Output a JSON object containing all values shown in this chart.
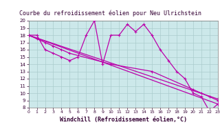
{
  "title": "Courbe du refroidissement éolien pour Neu Ulrichstein",
  "xlabel": "Windchill (Refroidissement éolien,°C)",
  "bg_color": "#cce8ea",
  "title_bg": "#ffffff",
  "grid_color": "#aacccc",
  "line_color": "#bb00aa",
  "x_min": 0,
  "x_max": 23,
  "y_min": 8,
  "y_max": 20,
  "series1_x": [
    0,
    1,
    2,
    3,
    4,
    5,
    6,
    7,
    8,
    9,
    10,
    11,
    12,
    13,
    14,
    15,
    16,
    17,
    18,
    19,
    20,
    21,
    22,
    23
  ],
  "series1_y": [
    18,
    18,
    16,
    15.5,
    15,
    14.5,
    15,
    18,
    20,
    14,
    18,
    18,
    19.5,
    18.5,
    19.5,
    18,
    16,
    14.5,
    13,
    12,
    10,
    9.5,
    7.5,
    8.5
  ],
  "series2_x": [
    0,
    1,
    2,
    3,
    4,
    5,
    10,
    15,
    20,
    21,
    22,
    23
  ],
  "series2_y": [
    18,
    17.5,
    17,
    16.5,
    16,
    15.5,
    14,
    13,
    10.5,
    10,
    9.5,
    9
  ],
  "series3_x": [
    0,
    23
  ],
  "series3_y": [
    18,
    8.5
  ],
  "series4_x": [
    0,
    23
  ],
  "series4_y": [
    18,
    9.2
  ],
  "yticks": [
    8,
    9,
    10,
    11,
    12,
    13,
    14,
    15,
    16,
    17,
    18,
    19,
    20
  ],
  "xticks": [
    0,
    1,
    2,
    3,
    4,
    5,
    6,
    7,
    8,
    9,
    10,
    11,
    12,
    13,
    14,
    15,
    16,
    17,
    18,
    19,
    20,
    21,
    22,
    23
  ],
  "title_fontsize": 6,
  "tick_fontsize": 5,
  "xlabel_fontsize": 6
}
